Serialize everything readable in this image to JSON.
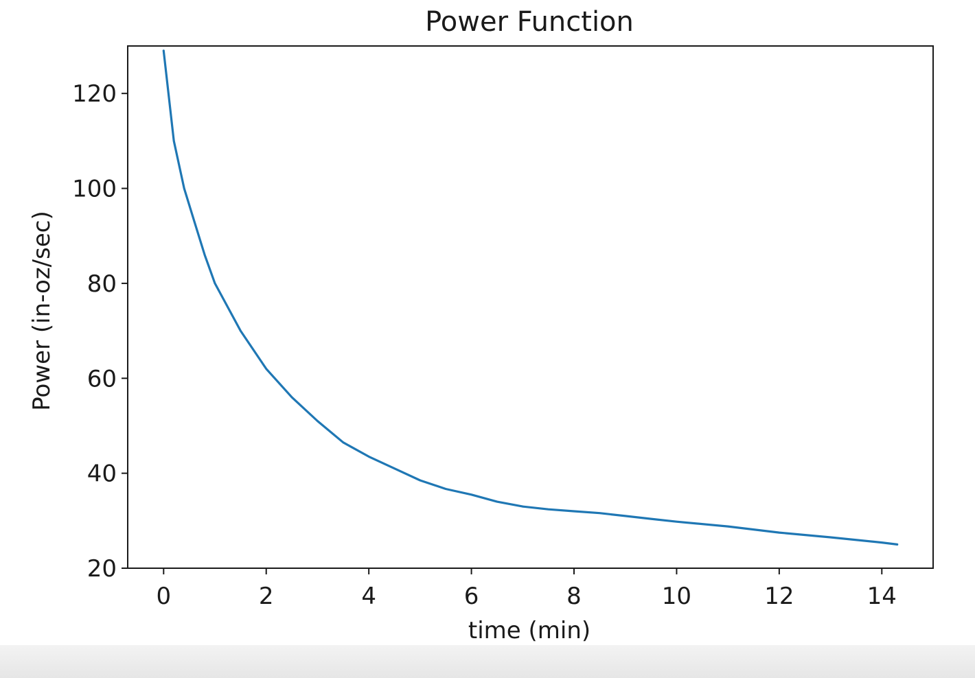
{
  "chart_data": {
    "type": "line",
    "title": "Power Function",
    "xlabel": "time (min)",
    "ylabel": "Power (in-oz/sec)",
    "xlim": [
      -0.7,
      15.0
    ],
    "ylim": [
      20,
      130
    ],
    "xticks": [
      0,
      2,
      4,
      6,
      8,
      10,
      12,
      14
    ],
    "yticks": [
      20,
      40,
      60,
      80,
      100,
      120
    ],
    "xtick_labels": [
      "0",
      "2",
      "4",
      "6",
      "8",
      "10",
      "12",
      "14"
    ],
    "ytick_labels": [
      "20",
      "40",
      "60",
      "80",
      "100",
      "120"
    ],
    "grid": false,
    "line_color": "#1f77b4",
    "series": [
      {
        "x": [
          0,
          0.2,
          0.4,
          0.6,
          0.8,
          1.0,
          1.5,
          2.0,
          2.5,
          3.0,
          3.5,
          4.0,
          4.5,
          5.0,
          5.5,
          6.0,
          6.5,
          7.0,
          7.5,
          8.0,
          8.5,
          9.0,
          9.5,
          10.0,
          11.0,
          12.0,
          13.0,
          14.0,
          14.3
        ],
        "y": [
          129,
          110,
          100,
          93,
          86,
          80,
          70,
          62,
          56,
          51,
          46.5,
          43.5,
          41,
          38.5,
          36.7,
          35.5,
          34,
          33,
          32.4,
          32,
          31.6,
          31,
          30.4,
          29.8,
          28.8,
          27.5,
          26.5,
          25.4,
          25
        ]
      }
    ]
  }
}
